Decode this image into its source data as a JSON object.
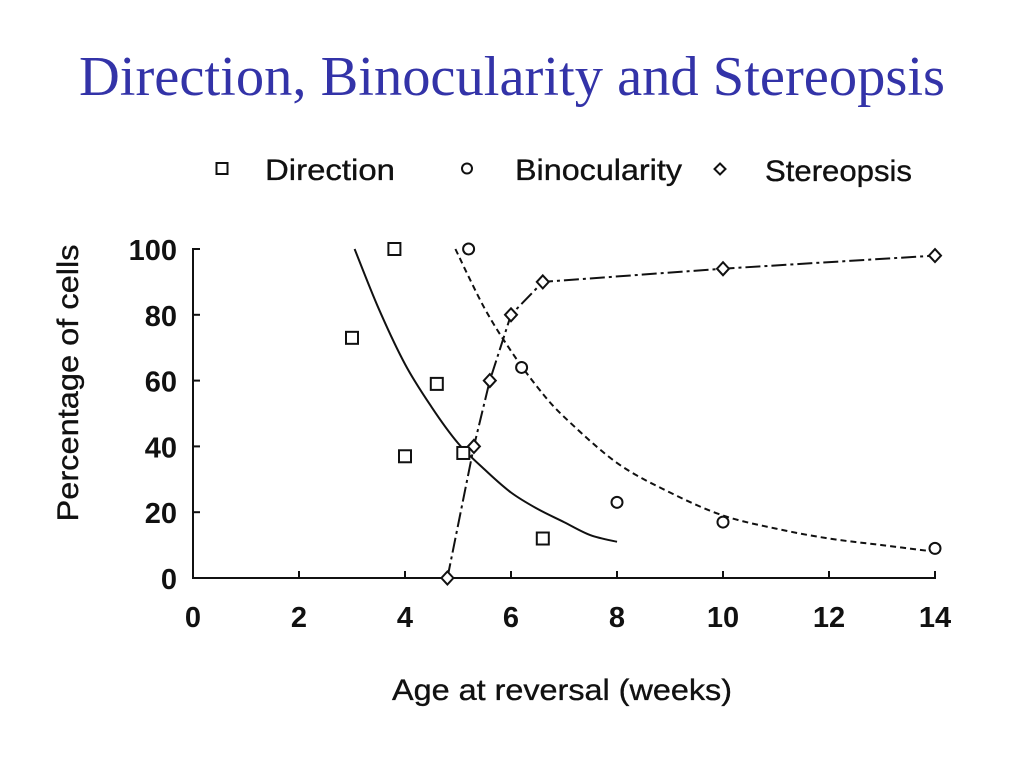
{
  "colors": {
    "title": "#3333a8",
    "ink": "#111111",
    "background": "#ffffff"
  },
  "chart_data": {
    "type": "scatter",
    "title": "Direction, Binocularity and Stereopsis",
    "xlabel": "Age at reversal (weeks)",
    "ylabel": "Percentage of cells",
    "xlim": [
      0,
      14
    ],
    "ylim": [
      0,
      100
    ],
    "xticks": [
      0,
      2,
      4,
      6,
      8,
      10,
      12,
      14
    ],
    "yticks": [
      0,
      20,
      40,
      60,
      80,
      100
    ],
    "grid": false,
    "legend": "top",
    "series": [
      {
        "name": "Direction",
        "marker": "square",
        "line_style": "solid",
        "x": [
          3.0,
          3.8,
          4.0,
          4.6,
          5.1,
          6.6
        ],
        "y": [
          73,
          100,
          37,
          59,
          38,
          12
        ],
        "fit": {
          "x": [
            3.05,
            3.5,
            4,
            4.5,
            5,
            5.5,
            6,
            6.5,
            7,
            7.5,
            8
          ],
          "y": [
            100,
            82,
            65,
            52,
            41,
            33,
            26,
            21,
            17,
            13,
            11
          ]
        }
      },
      {
        "name": "Binocularity",
        "marker": "circle",
        "line_style": "dashed",
        "x": [
          5.2,
          6.2,
          8,
          10,
          14
        ],
        "y": [
          100,
          64,
          23,
          17,
          9
        ],
        "fit": {
          "x": [
            4.95,
            5.5,
            6,
            6.5,
            7,
            8,
            9,
            10,
            11,
            12,
            13,
            14
          ],
          "y": [
            100,
            82,
            69,
            58,
            49,
            35,
            26,
            19,
            15,
            12,
            10,
            8
          ]
        }
      },
      {
        "name": "Stereopsis",
        "marker": "diamond",
        "line_style": "dash-dot",
        "x": [
          4.8,
          5.3,
          5.6,
          6,
          6.6,
          10,
          14
        ],
        "y": [
          0,
          40,
          60,
          80,
          90,
          94,
          98
        ]
      }
    ]
  }
}
